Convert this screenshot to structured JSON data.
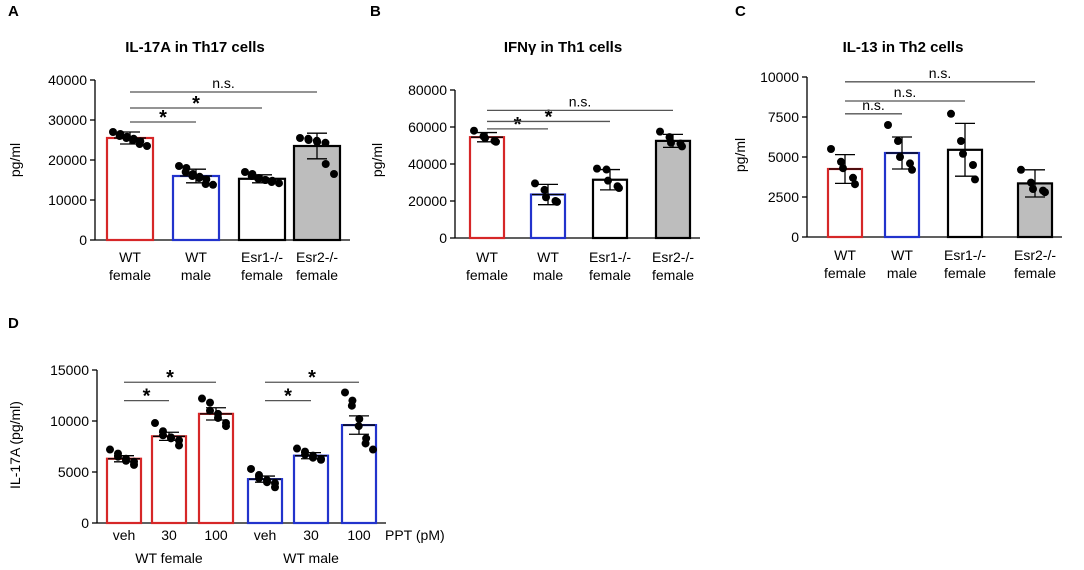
{
  "chart_data": [
    {
      "type": "bar",
      "panel": "A",
      "title": "IL-17A in  Th17 cells",
      "ylabel": "pg/ml",
      "ylim": [
        0,
        40000
      ],
      "yticks": [
        0,
        10000,
        20000,
        30000,
        40000
      ],
      "categories": [
        [
          "WT",
          "female"
        ],
        [
          "WT",
          "male"
        ],
        [
          "Esr1-/-",
          "female"
        ],
        [
          "Esr2-/-",
          "female"
        ]
      ],
      "values": [
        25500,
        16000,
        15300,
        23500
      ],
      "errors": [
        1500,
        1700,
        1000,
        3200
      ],
      "colors": [
        "#d62728",
        "#2233cc",
        "#000000",
        "#000000"
      ],
      "fills": [
        "#ffffff",
        "#ffffff",
        "#ffffff",
        "#bdbdbd"
      ],
      "points": [
        [
          27000,
          26500,
          26000,
          25800,
          25500,
          25300,
          25000,
          24700,
          24000,
          23500
        ],
        [
          18500,
          18000,
          17000,
          16500,
          16000,
          15800,
          15500,
          15200,
          14000,
          13800
        ],
        [
          17000,
          16500,
          16000,
          15500,
          15300,
          15000,
          15000,
          14800,
          14500,
          14200
        ],
        [
          25500,
          25300,
          25000,
          24800,
          24500,
          24300,
          19000,
          16500
        ]
      ],
      "comparisons": [
        {
          "from": 0,
          "to": 1,
          "label": "*",
          "value": 29500
        },
        {
          "from": 0,
          "to": 2,
          "label": "*",
          "value": 33000
        },
        {
          "from": 0,
          "to": 3,
          "label": "n.s.",
          "value": 37000
        }
      ]
    },
    {
      "type": "bar",
      "panel": "B",
      "title": "IFNγ in  Th1 cells",
      "ylabel": "pg/ml",
      "ylim": [
        0,
        80000
      ],
      "yticks": [
        0,
        20000,
        40000,
        60000,
        80000
      ],
      "categories": [
        [
          "WT",
          "female"
        ],
        [
          "WT",
          "male"
        ],
        [
          "Esr1-/-",
          "female"
        ],
        [
          "Esr2-/-",
          "female"
        ]
      ],
      "values": [
        54500,
        23500,
        31500,
        52500
      ],
      "errors": [
        2500,
        5500,
        5500,
        3500
      ],
      "colors": [
        "#d62728",
        "#2233cc",
        "#000000",
        "#000000"
      ],
      "fills": [
        "#ffffff",
        "#ffffff",
        "#ffffff",
        "#bdbdbd"
      ],
      "points": [
        [
          58000,
          55000,
          54000,
          52500,
          52000
        ],
        [
          29500,
          26000,
          22000,
          20000,
          19500
        ],
        [
          37500,
          37000,
          31000,
          28000,
          27000
        ],
        [
          57500,
          54500,
          51500,
          51000,
          49500
        ]
      ],
      "comparisons": [
        {
          "from": 0,
          "to": 1,
          "label": "*",
          "value": 59000
        },
        {
          "from": 0,
          "to": 2,
          "label": "*",
          "value": 63000
        },
        {
          "from": 0,
          "to": 3,
          "label": "n.s.",
          "value": 69000
        }
      ]
    },
    {
      "type": "bar",
      "panel": "C",
      "title": "IL-13 in Th2 cells",
      "ylabel": "pg/ml",
      "ylim": [
        0,
        10000
      ],
      "yticks": [
        0,
        2500,
        5000,
        7500,
        10000
      ],
      "categories": [
        [
          "WT",
          "female"
        ],
        [
          "WT",
          "male"
        ],
        [
          "Esr1-/-",
          "female"
        ],
        [
          "Esr2-/-",
          "female"
        ]
      ],
      "values": [
        4250,
        5250,
        5450,
        3350
      ],
      "errors": [
        900,
        1000,
        1650,
        850
      ],
      "colors": [
        "#d62728",
        "#2233cc",
        "#000000",
        "#000000"
      ],
      "fills": [
        "#ffffff",
        "#ffffff",
        "#ffffff",
        "#bdbdbd"
      ],
      "points": [
        [
          5500,
          4700,
          4300,
          3700,
          3300
        ],
        [
          7000,
          6000,
          5000,
          4600,
          4200
        ],
        [
          7700,
          6000,
          5200,
          4500,
          3600
        ],
        [
          4200,
          3400,
          3000,
          2900,
          2800
        ]
      ],
      "comparisons": [
        {
          "from": 0,
          "to": 1,
          "label": "n.s.",
          "value": 7700
        },
        {
          "from": 0,
          "to": 2,
          "label": "n.s.",
          "value": 8500
        },
        {
          "from": 0,
          "to": 3,
          "label": "n.s.",
          "value": 9700
        }
      ]
    },
    {
      "type": "bar",
      "panel": "D",
      "title": "",
      "ylabel": "IL-17A (pg/ml)",
      "ylim": [
        0,
        15000
      ],
      "yticks": [
        0,
        5000,
        10000,
        15000
      ],
      "categories": [
        "veh",
        "30",
        "100",
        "veh",
        "30",
        "100"
      ],
      "axis_suffix": "PPT (pM)",
      "groups": [
        "WT female",
        "WT male"
      ],
      "values": [
        6300,
        8500,
        10700,
        4300,
        6600,
        9600
      ],
      "errors": [
        300,
        400,
        600,
        300,
        300,
        900
      ],
      "colors": [
        "#d62728",
        "#d62728",
        "#d62728",
        "#2233cc",
        "#2233cc",
        "#2233cc"
      ],
      "fills": [
        "#ffffff",
        "#ffffff",
        "#ffffff",
        "#ffffff",
        "#ffffff",
        "#ffffff"
      ],
      "points": [
        [
          7200,
          6800,
          6500,
          6300,
          6100,
          6000,
          5700
        ],
        [
          9800,
          9000,
          8600,
          8400,
          8300,
          8100,
          7600
        ],
        [
          12200,
          11800,
          11000,
          10700,
          10300,
          9800,
          9500
        ],
        [
          5300,
          4700,
          4400,
          4200,
          4000,
          3900,
          3500
        ],
        [
          7300,
          7000,
          6700,
          6600,
          6400,
          6300,
          6200
        ],
        [
          12800,
          12000,
          11500,
          10200,
          9500,
          8300,
          7800,
          7200
        ]
      ],
      "comparisons": [
        {
          "from": 0,
          "to": 1,
          "label": "*",
          "value": 12000
        },
        {
          "from": 0,
          "to": 2,
          "label": "*",
          "value": 13800
        },
        {
          "from": 3,
          "to": 4,
          "label": "*",
          "value": 12000
        },
        {
          "from": 3,
          "to": 5,
          "label": "*",
          "value": 13800
        }
      ]
    }
  ]
}
